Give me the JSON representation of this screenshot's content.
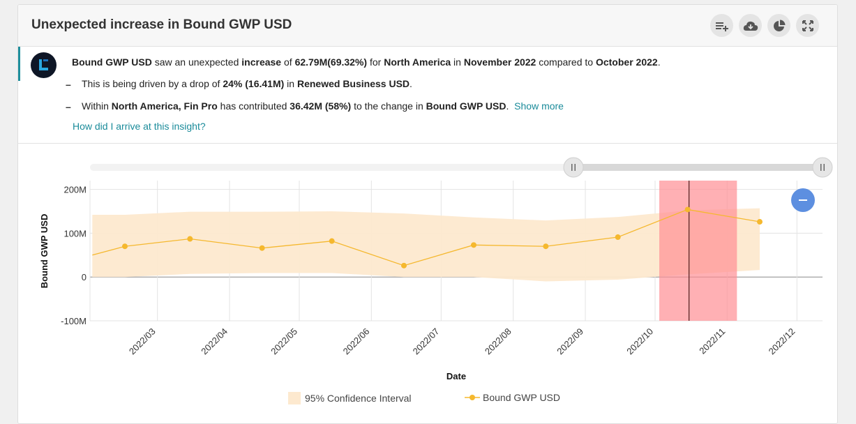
{
  "header": {
    "title": "Unexpected increase in Bound GWP USD",
    "buttons": [
      {
        "name": "add-to-list-icon"
      },
      {
        "name": "cloud-download-icon"
      },
      {
        "name": "pie-chart-icon"
      },
      {
        "name": "expand-icon"
      }
    ]
  },
  "insight": {
    "line1": {
      "metric": "Bound GWP USD",
      "t1": "saw an unexpected",
      "direction": "increase",
      "t2": "of",
      "delta": "62.79M(69.32%)",
      "t3": "for",
      "region": "North America",
      "t4": "in",
      "period": "November 2022",
      "t5": "compared to",
      "prev_period": "October 2022",
      "t6": "."
    },
    "line2": {
      "t1": "This is being driven by a drop of",
      "pct": "24% (16.41M)",
      "t2": "in",
      "driver": "Renewed Business USD",
      "t3": "."
    },
    "line3": {
      "t1": "Within",
      "region": "North America,",
      "segment": "Fin Pro",
      "t2": "has contributed",
      "amount": "36.42M (58%)",
      "t3": "to the change in",
      "metric": "Bound GWP USD",
      "t4": ".",
      "show_more": "Show more"
    },
    "arrive_link": "How did I arrive at this insight?"
  },
  "chart_data": {
    "type": "line",
    "ylabel": "Bound GWP USD",
    "xlabel": "Date",
    "ylim": [
      -100,
      220
    ],
    "y_ticks": [
      "200M",
      "100M",
      "0",
      "-100M"
    ],
    "x_ticks": [
      "2022/03",
      "2022/04",
      "2022/05",
      "2022/06",
      "2022/07",
      "2022/08",
      "2022/09",
      "2022/10",
      "2022/11",
      "2022/12"
    ],
    "series": [
      {
        "name": "Bound GWP USD",
        "color": "#f5b82e",
        "points": [
          {
            "x": "2022-02-01",
            "y": 50
          },
          {
            "x": "2022-02-15",
            "y": 70
          },
          {
            "x": "2022-03-15",
            "y": 87
          },
          {
            "x": "2022-04-15",
            "y": 66
          },
          {
            "x": "2022-05-15",
            "y": 82
          },
          {
            "x": "2022-06-15",
            "y": 26
          },
          {
            "x": "2022-07-15",
            "y": 73
          },
          {
            "x": "2022-08-15",
            "y": 70
          },
          {
            "x": "2022-09-15",
            "y": 91
          },
          {
            "x": "2022-10-15",
            "y": 154
          },
          {
            "x": "2022-11-15",
            "y": 126
          }
        ]
      }
    ],
    "confidence_interval": {
      "name": "95% Confidence Interval",
      "color": "#fde9cf",
      "upper": [
        142,
        142,
        149,
        149,
        150,
        145,
        136,
        129,
        137,
        152,
        157
      ],
      "lower": [
        0,
        0,
        7,
        9,
        9,
        0,
        0,
        -10,
        -6,
        6,
        16
      ]
    },
    "highlight": {
      "from": "2022-10-01",
      "to": "2022-11-01",
      "marker": "2022-10-15",
      "color": "#ff8e94"
    },
    "range_slider": {
      "start_fraction": 0.66,
      "end_fraction": 1.0
    },
    "grid": true,
    "legend": [
      {
        "label": "95% Confidence Interval"
      },
      {
        "label": "Bound GWP USD"
      }
    ],
    "legend_position": "bottom"
  }
}
